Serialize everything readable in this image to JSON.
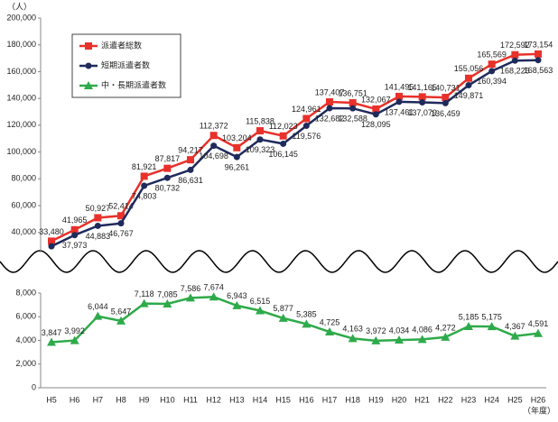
{
  "chart_data": [
    {
      "type": "line",
      "ylabel": "（人）",
      "ylim": [
        25000,
        200000
      ],
      "yticks": [
        {
          "value": 40000,
          "label": "40,000"
        },
        {
          "value": 60000,
          "label": "60,000"
        },
        {
          "value": 80000,
          "label": "80,000"
        },
        {
          "value": 100000,
          "label": "100,000"
        },
        {
          "value": 120000,
          "label": "120,000"
        },
        {
          "value": 140000,
          "label": "140,000"
        },
        {
          "value": 160000,
          "label": "160,000"
        },
        {
          "value": 180000,
          "label": "180,000"
        },
        {
          "value": 200000,
          "label": "200,000"
        }
      ],
      "series": [
        {
          "name": "派遣者総数",
          "color": "#e8312a",
          "marker": "square",
          "values": [
            33480,
            41965,
            50927,
            52414,
            81921,
            87817,
            94217,
            112372,
            103204,
            115838,
            112023,
            124961,
            137407,
            136751,
            132067,
            141495,
            141165,
            140731,
            155056,
            165569,
            172592,
            173154
          ],
          "value_labels": [
            "33,480",
            "41,965",
            "50,927",
            "52,414",
            "81,921",
            "87,817",
            "94,217",
            "112,372",
            "103,204",
            "115,838",
            "112,023",
            "124,961",
            "137,407",
            "136,751",
            "132,067",
            "141,495",
            "141,165",
            "140,731",
            "155,056",
            "165,569",
            "172,592",
            "173,154"
          ]
        },
        {
          "name": "短期派遣者数",
          "color": "#1f2a5c",
          "marker": "circle",
          "values": [
            29633,
            37973,
            44883,
            46767,
            74803,
            80732,
            86631,
            104698,
            96261,
            109323,
            106145,
            119576,
            132682,
            132588,
            128095,
            137461,
            137079,
            136459,
            149871,
            160394,
            168225,
            168563
          ],
          "value_labels": [
            null,
            "37,973",
            "44,883",
            "46,767",
            "74,803",
            "80,732",
            "86,631",
            "104,698",
            "96,261",
            "109,323",
            "106,145",
            "119,576",
            "132,682",
            "132,588",
            "128,095",
            "137,461",
            "137,079",
            "136,459",
            "149,871",
            "160,394",
            "168,225",
            "168,563"
          ]
        }
      ]
    },
    {
      "type": "line",
      "xlabel": "（年度）",
      "ylim": [
        0,
        8000
      ],
      "yticks": [
        0,
        {
          "value": 2000,
          "label": "2,000"
        },
        {
          "value": 4000,
          "label": "4,000"
        },
        {
          "value": 6000,
          "label": "6,000"
        },
        {
          "value": 8000,
          "label": "8,000"
        }
      ],
      "categories": [
        "H5",
        "H6",
        "H7",
        "H8",
        "H9",
        "H10",
        "H11",
        "H12",
        "H13",
        "H14",
        "H15",
        "H16",
        "H17",
        "H18",
        "H19",
        "H20",
        "H21",
        "H22",
        "H23",
        "H24",
        "H25",
        "H26"
      ],
      "series": [
        {
          "name": "中・長期派遣者数",
          "color": "#2eaa4a",
          "marker": "triangle",
          "values": [
            3847,
            3992,
            6044,
            5647,
            7118,
            7085,
            7586,
            7674,
            6943,
            6515,
            5877,
            5385,
            4725,
            4163,
            3972,
            4034,
            4086,
            4272,
            5185,
            5175,
            4367,
            4591
          ],
          "value_labels": [
            "3,847",
            "3,992",
            "6,044",
            "5,647",
            "7,118",
            "7,085",
            "7,586",
            "7,674",
            "6,943",
            "6,515",
            "5,877",
            "5,385",
            "4,725",
            "4,163",
            "3,972",
            "4,034",
            "4,086",
            "4,272",
            "5,185",
            "5,175",
            "4,367",
            "4,591"
          ]
        }
      ]
    }
  ]
}
